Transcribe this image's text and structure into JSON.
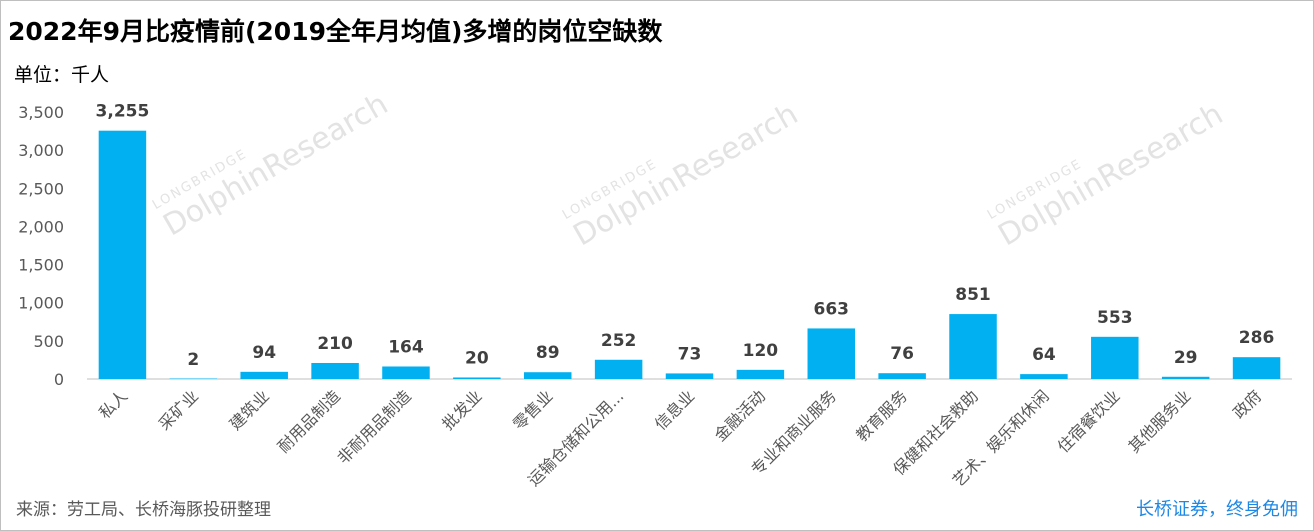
{
  "title": "2022年9月比疫情前(2019全年月均值)多增的岗位空缺数",
  "unit_label": "单位：千人",
  "source": "来源：劳工局、长桥海豚投研整理",
  "brand_slogan": "长桥证券，终身免佣",
  "watermark": {
    "line1": "LONGBRIDGE",
    "line2": "DolphinResearch"
  },
  "colors": {
    "bar": "#00b0f0",
    "axis": "#bfbfbf",
    "text": "#595959",
    "label": "#404040"
  },
  "chart_data": {
    "type": "bar",
    "categories": [
      "私人",
      "采矿业",
      "建筑业",
      "耐用品制造",
      "非耐用品制造",
      "批发业",
      "零售业",
      "运输仓储和公用...",
      "信息业",
      "金融活动",
      "专业和商业服务",
      "教育服务",
      "保健和社会救助",
      "艺术、娱乐和休闲",
      "住宿餐饮业",
      "其他服务业",
      "政府"
    ],
    "values": [
      3255,
      2,
      94,
      210,
      164,
      20,
      89,
      252,
      73,
      120,
      663,
      76,
      851,
      64,
      553,
      29,
      286
    ],
    "value_labels": [
      "3,255",
      "2",
      "94",
      "210",
      "164",
      "20",
      "89",
      "252",
      "73",
      "120",
      "663",
      "76",
      "851",
      "64",
      "553",
      "29",
      "286"
    ],
    "y_ticks": [
      0,
      500,
      1000,
      1500,
      2000,
      2500,
      3000,
      3500
    ],
    "y_tick_labels": [
      "0",
      "500",
      "1,000",
      "1,500",
      "2,000",
      "2,500",
      "3,000",
      "3,500"
    ],
    "ylim": [
      0,
      3500
    ],
    "grid": false,
    "legend": "none"
  }
}
